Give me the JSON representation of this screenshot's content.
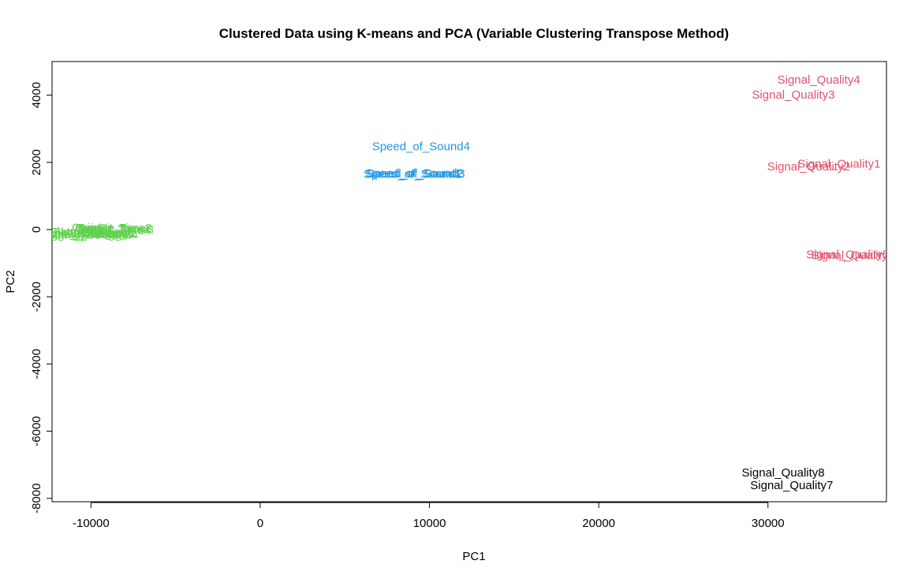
{
  "chart_data": {
    "type": "scatter",
    "title": "Clustered Data using K-means and PCA (Variable Clustering Transpose Method)",
    "xlabel": "PC1",
    "ylabel": "PC2",
    "xlim": [
      -12300,
      37000
    ],
    "ylim": [
      -8100,
      5000
    ],
    "xticks": [
      -10000,
      0,
      10000,
      20000,
      30000
    ],
    "yticks": [
      -8000,
      -6000,
      -4000,
      -2000,
      0,
      2000,
      4000
    ],
    "xtick_labels": [
      "-10000",
      "0",
      "10000",
      "20000",
      "30000"
    ],
    "ytick_labels": [
      "-8000",
      "-6000",
      "-4000",
      "-2000",
      "0",
      "2000",
      "4000"
    ],
    "grid": false,
    "legend": "none",
    "points": [
      {
        "label": "Signal_Quality4",
        "x": 33000,
        "y": 4450,
        "color": "#DF536B"
      },
      {
        "label": "Signal_Quality3",
        "x": 31500,
        "y": 4000,
        "color": "#DF536B"
      },
      {
        "label": "Signal_Quality1",
        "x": 34200,
        "y": 1950,
        "color": "#DF536B"
      },
      {
        "label": "Signal_Quality2",
        "x": 32400,
        "y": 1870,
        "color": "#DF536B"
      },
      {
        "label": "Signal_Quality5",
        "x": 34700,
        "y": -750,
        "color": "#DF536B"
      },
      {
        "label": "Signal_Quality6",
        "x": 35000,
        "y": -780,
        "color": "#DF536B"
      },
      {
        "label": "Speed_of_Sound4",
        "x": 9500,
        "y": 2460,
        "color": "#2297E6"
      },
      {
        "label": "Speed_of_Sound2",
        "x": 9100,
        "y": 1670,
        "color": "#2297E6"
      },
      {
        "label": "Speed_of_Sound3",
        "x": 9200,
        "y": 1650,
        "color": "#2297E6"
      },
      {
        "label": "Speed_of_Sound1",
        "x": 9000,
        "y": 1640,
        "color": "#2297E6"
      },
      {
        "label": "Signal_Quality8",
        "x": 30900,
        "y": -7240,
        "color": "#000000"
      },
      {
        "label": "Signal_Quality7",
        "x": 31400,
        "y": -7620,
        "color": "#000000"
      },
      {
        "label": "Gain1",
        "x": -10200,
        "y": 50,
        "color": "#61D04F"
      },
      {
        "label": "Gain2",
        "x": -10000,
        "y": 40,
        "color": "#61D04F"
      },
      {
        "label": "Transit_Time1",
        "x": -8700,
        "y": 10,
        "color": "#61D04F"
      },
      {
        "label": "Transit_Time2",
        "x": -8600,
        "y": 30,
        "color": "#61D04F"
      },
      {
        "label": "Transit_Time3",
        "x": -8500,
        "y": -10,
        "color": "#61D04F"
      },
      {
        "label": "Transit_Time4",
        "x": -8700,
        "y": -30,
        "color": "#61D04F"
      },
      {
        "label": "Signal_Strength1",
        "x": -10500,
        "y": -130,
        "color": "#61D04F"
      },
      {
        "label": "Signal_Strength2",
        "x": -10300,
        "y": -150,
        "color": "#61D04F"
      },
      {
        "label": "Signal_Strength3",
        "x": -10100,
        "y": -120,
        "color": "#61D04F"
      },
      {
        "label": "Signal_Strength4",
        "x": -9900,
        "y": -160,
        "color": "#61D04F"
      },
      {
        "label": "Symmetry1",
        "x": -9300,
        "y": -140,
        "color": "#61D04F"
      },
      {
        "label": "Symmetry2",
        "x": -9100,
        "y": -130,
        "color": "#61D04F"
      },
      {
        "label": "Flatness1",
        "x": -10900,
        "y": -80,
        "color": "#61D04F"
      },
      {
        "label": "Flatness2",
        "x": -10700,
        "y": -100,
        "color": "#61D04F"
      }
    ]
  }
}
